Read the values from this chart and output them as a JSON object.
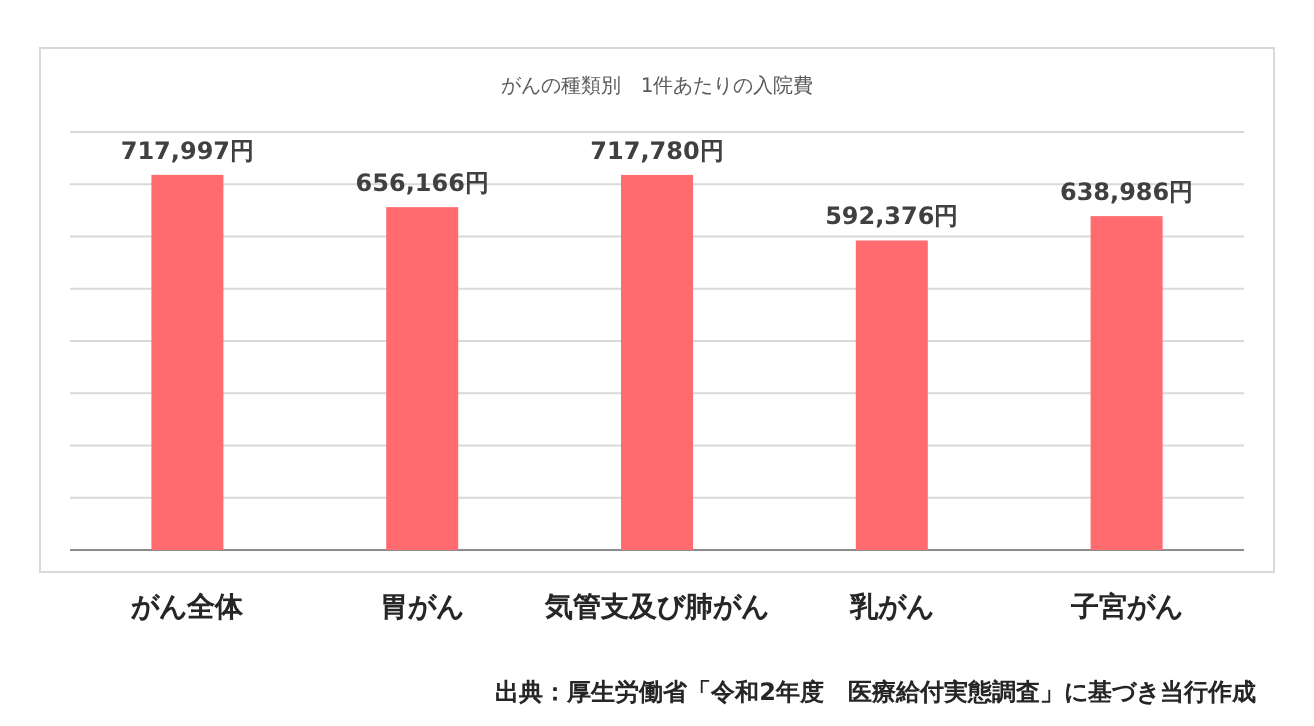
{
  "chart_data": {
    "type": "bar",
    "title": "がんの種類別　1件あたりの入院費",
    "categories": [
      "がん全体",
      "胃がん",
      "気管支及び肺がん",
      "乳がん",
      "子宮がん"
    ],
    "values": [
      717997,
      656166,
      717780,
      592376,
      638986
    ],
    "value_labels": [
      "717,997円",
      "656,166円",
      "717,780円",
      "592,376円",
      "638,986円"
    ],
    "color": "#ff6b6f",
    "ylim": [
      0,
      800000
    ],
    "yticks": [
      {
        "value": 0,
        "label": null
      },
      {
        "value": 100000,
        "label": null
      },
      {
        "value": 200000,
        "label": null
      },
      {
        "value": 300000,
        "label": null
      },
      {
        "value": 400000,
        "label": null
      },
      {
        "value": 500000,
        "label": null
      },
      {
        "value": 600000,
        "label": null
      },
      {
        "value": 700000,
        "label": null
      },
      {
        "value": 800000,
        "label": null
      }
    ],
    "grid": "y",
    "tick_labels": "x",
    "annotations": [
      "出典：厚生労働省「令和2年度　医療給付実態調査」に基づき当行作成"
    ]
  }
}
